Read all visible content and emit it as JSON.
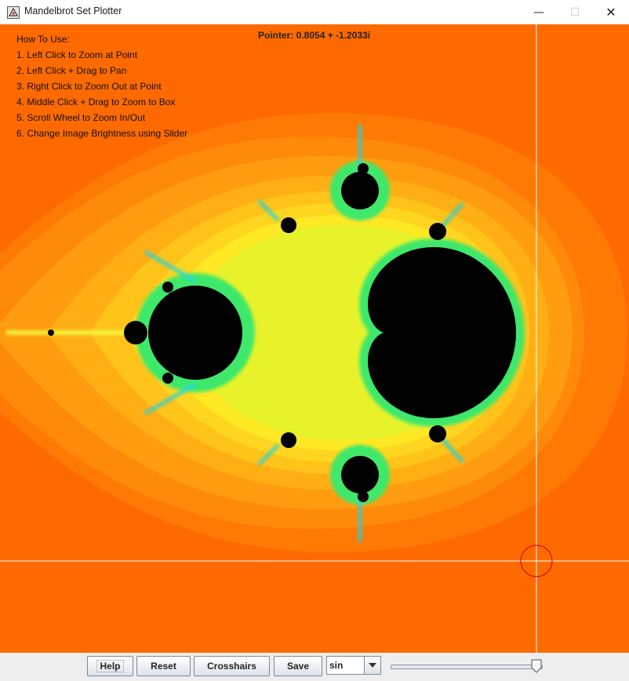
{
  "window": {
    "title": "Mandelbrot Set Plotter",
    "controls": [
      "minimize-icon",
      "maximize-icon",
      "close-icon"
    ]
  },
  "overlay": {
    "pointer": "Pointer: 0.8054 + -1.2033i",
    "howto_title": "How To Use:",
    "instructions": [
      "1. Left Click to Zoom at Point",
      "2. Left Click + Drag to Pan",
      "3. Right Click to Zoom Out at Point",
      "4. Middle Click + Drag to Zoom to Box",
      "5. Scroll Wheel to Zoom In/Out",
      "6. Change Image Brightness using Slider"
    ]
  },
  "colors": {
    "background_outer": "#ff6a00",
    "gradient_bands": [
      "#ff7a05",
      "#ff8a0a",
      "#ff9c0f",
      "#ffaf14",
      "#ffc31a",
      "#ffd61f",
      "#ffe824",
      "#e8f22a"
    ],
    "edge_green": "#3ee86a",
    "edge_cyan": "#22d4d8",
    "set_interior": "#000000",
    "crosshair": "#ffffff",
    "cursor_circle": "#cc0000"
  },
  "toolbar": {
    "help_label": "Help",
    "reset_label": "Reset",
    "crosshairs_label": "Crosshairs",
    "save_label": "Save",
    "function_select_value": "sin",
    "brightness_slider_value": 0.97
  }
}
